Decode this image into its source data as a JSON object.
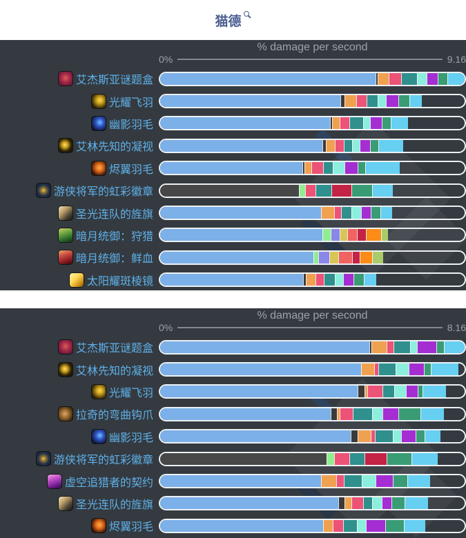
{
  "header": {
    "title": "猫德",
    "search_icon": "magnifier"
  },
  "colors": {
    "blue": "#7cb0e8",
    "dark": "#3b3b3b",
    "darkbar": "#474747",
    "orange": "#f0a150",
    "pink": "#ed5277",
    "teal": "#2f908d",
    "mint": "#8ceedd",
    "purple": "#a42ed2",
    "green": "#3a9c74",
    "sky": "#66cff2",
    "lime": "#90ee90",
    "peri": "#8a87e8",
    "khaki": "#d8c557",
    "salmon": "#ef6361",
    "crimson": "#c32345",
    "dorange": "#fb8c18",
    "ygreen": "#a9cb6b",
    "panel_bg": "#343a40",
    "label": "#5fb0e8",
    "axis": "#9da3a9",
    "title": "#4b5e91"
  },
  "chart_data": [
    {
      "type": "stacked-bar-horizontal",
      "title": "% damage per second",
      "axis_min_label": "0%",
      "axis_max_label": "9.16",
      "max_value": 9.16,
      "ylim": [
        0,
        9.16
      ],
      "legend": "none",
      "rows": [
        {
          "label": "艾杰斯亚谜题盒",
          "icon": "puzzle-box",
          "total": 9.16,
          "segments": [
            [
              "blue",
              6.47
            ],
            [
              "dark",
              0.06
            ],
            [
              "orange",
              0.33
            ],
            [
              "pink",
              0.37
            ],
            [
              "teal",
              0.48
            ],
            [
              "mint",
              0.29
            ],
            [
              "purple",
              0.33
            ],
            [
              "green",
              0.29
            ],
            [
              "sky",
              0.54
            ]
          ]
        },
        {
          "label": "光耀飞羽",
          "icon": "feather-gold",
          "total": 7.86,
          "segments": [
            [
              "blue",
              5.41
            ],
            [
              "dark",
              0.12
            ],
            [
              "orange",
              0.35
            ],
            [
              "pink",
              0.31
            ],
            [
              "teal",
              0.33
            ],
            [
              "mint",
              0.25
            ],
            [
              "purple",
              0.37
            ],
            [
              "green",
              0.33
            ],
            [
              "sky",
              0.39
            ]
          ]
        },
        {
          "label": "幽影羽毛",
          "icon": "feather-blue",
          "total": 7.44,
          "segments": [
            [
              "blue",
              5.1
            ],
            [
              "dark",
              0.06
            ],
            [
              "orange",
              0.23
            ],
            [
              "pink",
              0.29
            ],
            [
              "teal",
              0.41
            ],
            [
              "mint",
              0.21
            ],
            [
              "purple",
              0.35
            ],
            [
              "green",
              0.27
            ],
            [
              "sky",
              0.52
            ]
          ]
        },
        {
          "label": "艾林先知的凝视",
          "icon": "eye-gold",
          "total": 7.3,
          "segments": [
            [
              "blue",
              4.87
            ],
            [
              "dark",
              0.1
            ],
            [
              "orange",
              0.27
            ],
            [
              "pink",
              0.27
            ],
            [
              "teal",
              0.25
            ],
            [
              "mint",
              0.23
            ],
            [
              "purple",
              0.31
            ],
            [
              "green",
              0.25
            ],
            [
              "sky",
              0.75
            ]
          ]
        },
        {
          "label": "烬翼羽毛",
          "icon": "feather-ember",
          "total": 7.19,
          "segments": [
            [
              "blue",
              4.27
            ],
            [
              "dark",
              0.06
            ],
            [
              "orange",
              0.21
            ],
            [
              "pink",
              0.35
            ],
            [
              "teal",
              0.29
            ],
            [
              "mint",
              0.35
            ],
            [
              "purple",
              0.39
            ],
            [
              "green",
              0.23
            ],
            [
              "sky",
              1.04
            ]
          ]
        },
        {
          "label": "游侠将军的虹彩徽章",
          "icon": "badge",
          "total": 6.99,
          "segments": [
            [
              "darkbar",
              4.17
            ],
            [
              "lime",
              0.19
            ],
            [
              "pink",
              0.31
            ],
            [
              "teal",
              0.46
            ],
            [
              "crimson",
              0.6
            ],
            [
              "green",
              0.64
            ],
            [
              "sky",
              0.62
            ]
          ]
        },
        {
          "label": "圣光连队的旌旗",
          "icon": "banner",
          "total": 6.96,
          "segments": [
            [
              "blue",
              4.83
            ],
            [
              "orange",
              0.39
            ],
            [
              "pink",
              0.21
            ],
            [
              "teal",
              0.31
            ],
            [
              "mint",
              0.29
            ],
            [
              "purple",
              0.29
            ],
            [
              "green",
              0.29
            ],
            [
              "sky",
              0.35
            ]
          ]
        },
        {
          "label": "暗月统御：狩猎",
          "icon": "card-green",
          "total": 6.85,
          "segments": [
            [
              "blue",
              4.87
            ],
            [
              "lime",
              0.25
            ],
            [
              "peri",
              0.27
            ],
            [
              "khaki",
              0.23
            ],
            [
              "salmon",
              0.29
            ],
            [
              "crimson",
              0.27
            ],
            [
              "dorange",
              0.46
            ],
            [
              "ygreen",
              0.21
            ]
          ]
        },
        {
          "label": "暗月统御：鲜血",
          "icon": "card-red",
          "total": 6.69,
          "segments": [
            [
              "blue",
              4.6
            ],
            [
              "lime",
              0.15
            ],
            [
              "peri",
              0.33
            ],
            [
              "khaki",
              0.27
            ],
            [
              "salmon",
              0.41
            ],
            [
              "crimson",
              0.23
            ],
            [
              "dorange",
              0.37
            ],
            [
              "ygreen",
              0.33
            ]
          ]
        },
        {
          "label": "太阳耀斑棱镜",
          "icon": "prism",
          "total": 6.48,
          "segments": [
            [
              "blue",
              4.29
            ],
            [
              "dark",
              0.08
            ],
            [
              "orange",
              0.29
            ],
            [
              "pink",
              0.25
            ],
            [
              "teal",
              0.33
            ],
            [
              "mint",
              0.25
            ],
            [
              "purple",
              0.31
            ],
            [
              "green",
              0.31
            ],
            [
              "sky",
              0.37
            ]
          ]
        }
      ]
    },
    {
      "type": "stacked-bar-horizontal",
      "title": "% damage per second",
      "axis_min_label": "0%",
      "axis_max_label": "8.16",
      "max_value": 8.16,
      "ylim": [
        0,
        8.16
      ],
      "legend": "none",
      "rows": [
        {
          "label": "艾杰斯亚谜题盒",
          "icon": "puzzle-box",
          "total": 8.16,
          "segments": [
            [
              "blue",
              5.6
            ],
            [
              "dark",
              0.06
            ],
            [
              "orange",
              0.39
            ],
            [
              "pink",
              0.2
            ],
            [
              "teal",
              0.44
            ],
            [
              "mint",
              0.18
            ],
            [
              "purple",
              0.52
            ],
            [
              "green",
              0.2
            ],
            [
              "sky",
              0.57
            ]
          ]
        },
        {
          "label": "艾林先知的凝视",
          "icon": "eye-gold",
          "total": 7.98,
          "segments": [
            [
              "blue",
              5.37
            ],
            [
              "orange",
              0.35
            ],
            [
              "pink",
              0.11
            ],
            [
              "teal",
              0.46
            ],
            [
              "mint",
              0.35
            ],
            [
              "purple",
              0.42
            ],
            [
              "green",
              0.18
            ],
            [
              "sky",
              0.74
            ]
          ]
        },
        {
          "label": "光耀飞羽",
          "icon": "feather-gold",
          "total": 7.64,
          "segments": [
            [
              "blue",
              5.28
            ],
            [
              "dark",
              0.18
            ],
            [
              "orange",
              0.07
            ],
            [
              "pink",
              0.42
            ],
            [
              "teal",
              0.31
            ],
            [
              "mint",
              0.31
            ],
            [
              "purple",
              0.31
            ],
            [
              "green",
              0.13
            ],
            [
              "sky",
              0.63
            ]
          ]
        },
        {
          "label": "拉奇的弯曲钩爪",
          "icon": "hook",
          "total": 7.59,
          "segments": [
            [
              "blue",
              4.56
            ],
            [
              "dark",
              0.17
            ],
            [
              "orange",
              0.07
            ],
            [
              "pink",
              0.35
            ],
            [
              "teal",
              0.52
            ],
            [
              "mint",
              0.28
            ],
            [
              "purple",
              0.42
            ],
            [
              "green",
              0.59
            ],
            [
              "sky",
              0.63
            ]
          ]
        },
        {
          "label": "幽影羽毛",
          "icon": "feather-blue",
          "total": 7.49,
          "segments": [
            [
              "blue",
              5.1
            ],
            [
              "dark",
              0.18
            ],
            [
              "orange",
              0.35
            ],
            [
              "pink",
              0.11
            ],
            [
              "teal",
              0.48
            ],
            [
              "mint",
              0.22
            ],
            [
              "purple",
              0.39
            ],
            [
              "green",
              0.24
            ],
            [
              "sky",
              0.42
            ]
          ]
        },
        {
          "label": "游侠将军的虹彩徽章",
          "icon": "badge",
          "total": 7.42,
          "segments": [
            [
              "darkbar",
              4.45
            ],
            [
              "lime",
              0.2
            ],
            [
              "pink",
              0.41
            ],
            [
              "teal",
              0.41
            ],
            [
              "crimson",
              0.59
            ],
            [
              "green",
              0.66
            ],
            [
              "sky",
              0.7
            ]
          ]
        },
        {
          "label": "虚空追猎者的契约",
          "icon": "void-card",
          "total": 7.22,
          "segments": [
            [
              "blue",
              4.3
            ],
            [
              "orange",
              0.41
            ],
            [
              "pink",
              0.2
            ],
            [
              "teal",
              0.48
            ],
            [
              "mint",
              0.37
            ],
            [
              "purple",
              0.46
            ],
            [
              "green",
              0.39
            ],
            [
              "sky",
              0.61
            ]
          ]
        },
        {
          "label": "圣光连队的旌旗",
          "icon": "banner",
          "total": 7.16,
          "segments": [
            [
              "blue",
              4.76
            ],
            [
              "dark",
              0.17
            ],
            [
              "orange",
              0.18
            ],
            [
              "pink",
              0.31
            ],
            [
              "teal",
              0.24
            ],
            [
              "mint",
              0.26
            ],
            [
              "purple",
              0.26
            ],
            [
              "green",
              0.35
            ],
            [
              "sky",
              0.63
            ]
          ]
        },
        {
          "label": "烬翼羽毛",
          "icon": "feather-ember",
          "total": 7.08,
          "segments": [
            [
              "blue",
              4.36
            ],
            [
              "orange",
              0.26
            ],
            [
              "pink",
              0.28
            ],
            [
              "teal",
              0.37
            ],
            [
              "mint",
              0.24
            ],
            [
              "purple",
              0.5
            ],
            [
              "green",
              0.5
            ],
            [
              "sky",
              0.57
            ]
          ]
        }
      ]
    }
  ]
}
